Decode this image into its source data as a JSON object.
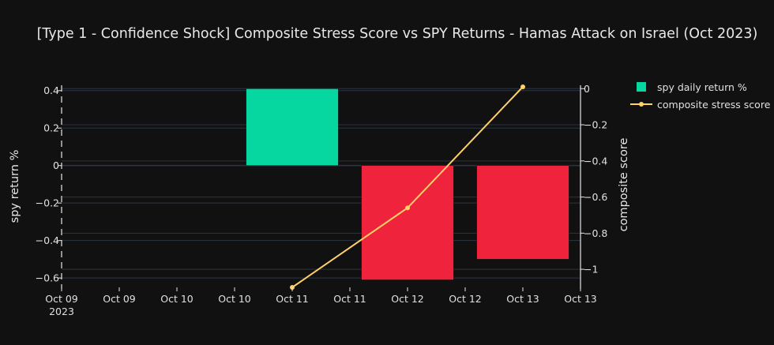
{
  "chart_data": {
    "type": "bar",
    "title": "[Type 1 - Confidence Shock] Composite Stress Score vs SPY Returns - Hamas Attack on Israel (Oct 2023)",
    "x_ticks": [
      "Oct 09",
      "Oct 09",
      "Oct 10",
      "Oct 10",
      "Oct 11",
      "Oct 11",
      "Oct 12",
      "Oct 12",
      "Oct 13",
      "Oct 13"
    ],
    "x_tick_sub": "2023",
    "ylabel": "spy return %",
    "y2label": "composite score",
    "ylim": [
      -0.65,
      0.42
    ],
    "y_ticks": [
      0.4,
      0.2,
      0,
      -0.2,
      -0.4,
      -0.6
    ],
    "y_tick_labels": [
      "0.4",
      "0.2",
      "0",
      "−0.2",
      "−0.4",
      "−0.6"
    ],
    "y2lim": [
      -1.1,
      0.01
    ],
    "y2_ticks": [
      0,
      -0.2,
      -0.4,
      -0.6,
      -0.8,
      -1
    ],
    "y2_tick_labels": [
      "0",
      "−0.2",
      "−0.4",
      "−0.6",
      "−0.8",
      "−1"
    ],
    "x_range": [
      0,
      4.5
    ],
    "bars": {
      "name": "spy daily return %",
      "x": [
        2,
        3,
        4
      ],
      "values": [
        0.41,
        -0.61,
        -0.5
      ],
      "colors": [
        "#06d6a0",
        "#ef233c",
        "#ef233c"
      ],
      "width": 0.8
    },
    "line": {
      "name": "composite stress score",
      "x": [
        2,
        3,
        4
      ],
      "values": [
        -1.1,
        -0.66,
        0.01
      ],
      "color": "#ffd166"
    },
    "legend_position": "top-right",
    "grid": true
  }
}
